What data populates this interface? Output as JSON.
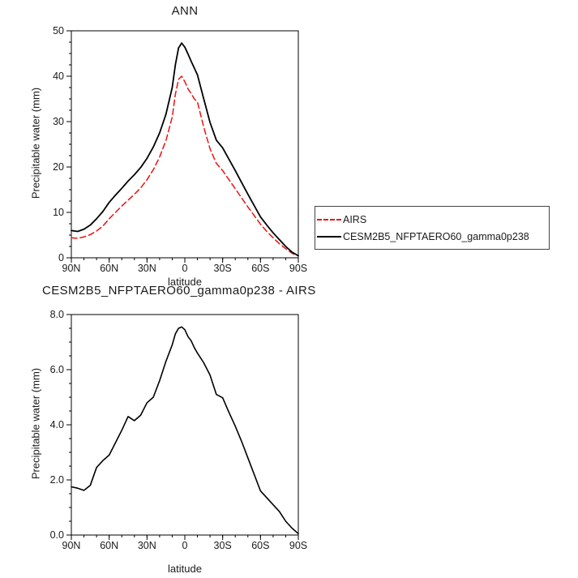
{
  "page": {
    "background": "#ffffff"
  },
  "chart_data": [
    {
      "type": "line",
      "title": "ANN",
      "xlabel": "latitude",
      "ylabel": "Precipitable water (mm)",
      "xlim": [
        90,
        -90
      ],
      "ylim": [
        0,
        50
      ],
      "grid": false,
      "legend_position": "right-outside",
      "xticks": [
        {
          "v": 90,
          "label": "90N"
        },
        {
          "v": 60,
          "label": "60N"
        },
        {
          "v": 30,
          "label": "30N"
        },
        {
          "v": 0,
          "label": "0"
        },
        {
          "v": -30,
          "label": "30S"
        },
        {
          "v": -60,
          "label": "60S"
        },
        {
          "v": -90,
          "label": "90S"
        }
      ],
      "yticks": [
        {
          "v": 0,
          "label": "0"
        },
        {
          "v": 10,
          "label": "10"
        },
        {
          "v": 20,
          "label": "20"
        },
        {
          "v": 30,
          "label": "30"
        },
        {
          "v": 40,
          "label": "40"
        },
        {
          "v": 50,
          "label": "50"
        }
      ],
      "x_minor_step": 10,
      "y_minor_step": 2.5,
      "x": [
        90,
        85,
        80,
        75,
        70,
        65,
        60,
        55,
        50,
        45,
        40,
        35,
        30,
        25,
        20,
        15,
        10,
        7.5,
        5,
        2.5,
        0,
        -2.5,
        -5,
        -7.5,
        -10,
        -15,
        -20,
        -25,
        -30,
        -35,
        -40,
        -45,
        -50,
        -55,
        -60,
        -65,
        -70,
        -75,
        -80,
        -85,
        -90
      ],
      "series": [
        {
          "name": "AIRS",
          "color": "#ee1111",
          "dash": "7 4",
          "width": 1.5,
          "values": [
            4.4,
            4.3,
            4.6,
            5.1,
            5.9,
            7.0,
            8.6,
            10.0,
            11.4,
            12.7,
            14.0,
            15.4,
            17.2,
            19.4,
            22.2,
            25.8,
            31.0,
            36.0,
            39.3,
            40.0,
            38.8,
            37.2,
            36.2,
            35.0,
            34.3,
            28.8,
            24.0,
            20.8,
            19.2,
            17.2,
            15.2,
            13.2,
            11.2,
            9.3,
            7.4,
            5.8,
            4.4,
            3.1,
            2.0,
            1.0,
            0.4
          ]
        },
        {
          "name": "CESM2B5_NFPTAERO60_gamma0p238",
          "color": "#000000",
          "dash": "",
          "width": 1.8,
          "values": [
            6.0,
            5.8,
            6.3,
            7.2,
            8.6,
            10.2,
            12.2,
            13.8,
            15.3,
            16.9,
            18.3,
            19.9,
            21.9,
            24.4,
            27.5,
            31.6,
            37.5,
            42.5,
            46.2,
            47.3,
            46.4,
            44.9,
            43.3,
            41.8,
            40.3,
            35.0,
            29.8,
            25.9,
            24.2,
            21.7,
            19.2,
            16.6,
            14.0,
            11.5,
            9.0,
            7.2,
            5.5,
            4.0,
            2.5,
            1.25,
            0.45
          ]
        }
      ]
    },
    {
      "type": "line",
      "title": "CESM2B5_NFPTAERO60_gamma0p238 - AIRS",
      "xlabel": "latitude",
      "ylabel": "Precipitable water (mm)",
      "xlim": [
        90,
        -90
      ],
      "ylim": [
        0,
        8
      ],
      "grid": false,
      "legend_position": "none",
      "xticks": [
        {
          "v": 90,
          "label": "90N"
        },
        {
          "v": 60,
          "label": "60N"
        },
        {
          "v": 30,
          "label": "30N"
        },
        {
          "v": 0,
          "label": "0"
        },
        {
          "v": -30,
          "label": "30S"
        },
        {
          "v": -60,
          "label": "60S"
        },
        {
          "v": -90,
          "label": "90S"
        }
      ],
      "yticks": [
        {
          "v": 0,
          "label": "0.0"
        },
        {
          "v": 2,
          "label": "2.0"
        },
        {
          "v": 4,
          "label": "4.0"
        },
        {
          "v": 6,
          "label": "6.0"
        },
        {
          "v": 8,
          "label": "8.0"
        }
      ],
      "x_minor_step": 10,
      "y_minor_step": 0.5,
      "x": [
        90,
        85,
        80,
        75,
        70,
        65,
        60,
        55,
        50,
        45,
        40,
        35,
        30,
        25,
        20,
        15,
        10,
        7.5,
        5,
        2.5,
        0,
        -2.5,
        -5,
        -7.5,
        -10,
        -15,
        -20,
        -25,
        -30,
        -35,
        -40,
        -45,
        -50,
        -55,
        -60,
        -65,
        -70,
        -75,
        -80,
        -85,
        -90
      ],
      "series": [
        {
          "name": "CESM2B5_NFPTAERO60_gamma0p238 - AIRS",
          "color": "#000000",
          "dash": "",
          "width": 1.6,
          "values": [
            1.75,
            1.7,
            1.62,
            1.8,
            2.45,
            2.7,
            2.9,
            3.35,
            3.8,
            4.3,
            4.15,
            4.35,
            4.8,
            5.0,
            5.6,
            6.3,
            6.9,
            7.3,
            7.5,
            7.55,
            7.45,
            7.2,
            7.05,
            6.8,
            6.6,
            6.25,
            5.8,
            5.1,
            4.98,
            4.45,
            3.95,
            3.4,
            2.8,
            2.2,
            1.6,
            1.35,
            1.1,
            0.85,
            0.5,
            0.25,
            0.05
          ]
        }
      ]
    }
  ]
}
